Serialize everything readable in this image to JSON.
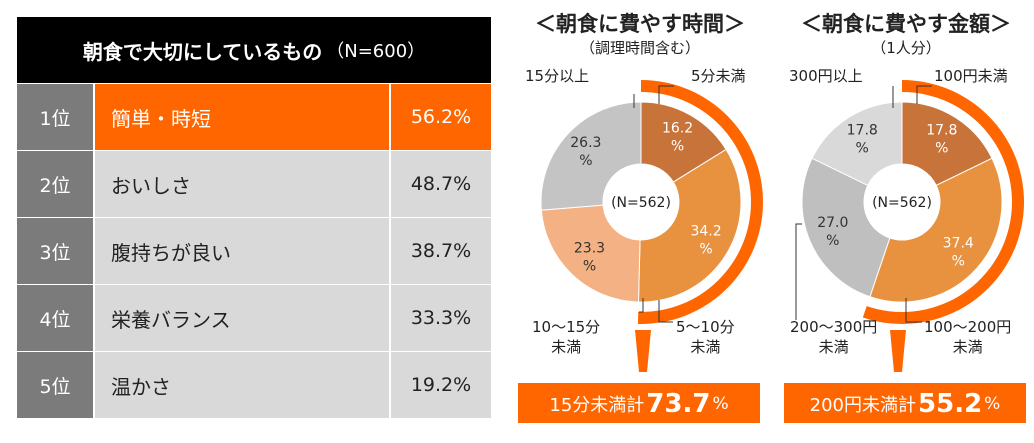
{
  "ranking": {
    "title": "朝食で大切にしているもの",
    "n_label": "（N=600）",
    "rows": [
      {
        "rank": "1位",
        "item": "簡単・時短",
        "value": "56.2%"
      },
      {
        "rank": "2位",
        "item": "おいしさ",
        "value": "48.7%"
      },
      {
        "rank": "3位",
        "item": "腹持ちが良い",
        "value": "38.7%"
      },
      {
        "rank": "4位",
        "item": "栄養バランス",
        "value": "33.3%"
      },
      {
        "rank": "5位",
        "item": "温かさ",
        "value": "19.2%"
      }
    ]
  },
  "chart_data": [
    {
      "type": "pie",
      "title": "＜朝食に費やす時間＞",
      "subtitle": "（調理時間含む）",
      "center_label": "(N=562)",
      "categories": [
        "5分未満",
        "5〜10分未満",
        "10〜15分未満",
        "15分以上"
      ],
      "values": [
        16.2,
        34.2,
        23.3,
        26.3
      ],
      "colors": [
        "#c8733a",
        "#e8913f",
        "#f4b183",
        "#c4c4c4"
      ],
      "slice_labels": [
        [
          "16.2",
          "%"
        ],
        [
          "34.2",
          "%"
        ],
        [
          "23.3",
          "%"
        ],
        [
          "26.3",
          "%"
        ]
      ],
      "outer_labels": [
        "5分未満",
        "5～10分\n未満",
        "10～15分\n未満",
        "15分以上"
      ],
      "highlight": {
        "text": "15分未満計",
        "value": "73.7",
        "unit": "%"
      }
    },
    {
      "type": "pie",
      "title": "＜朝食に費やす金額＞",
      "subtitle": "（1人分）",
      "center_label": "(N=562)",
      "categories": [
        "100円未満",
        "100〜200円未満",
        "200〜300円未満",
        "300円以上"
      ],
      "values": [
        17.8,
        37.4,
        27.0,
        17.8
      ],
      "colors": [
        "#c8733a",
        "#e8913f",
        "#bfbfbf",
        "#d9d9d9"
      ],
      "slice_labels": [
        [
          "17.8",
          "%"
        ],
        [
          "37.4",
          "%"
        ],
        [
          "27.0",
          "%"
        ],
        [
          "17.8",
          "%"
        ]
      ],
      "outer_labels": [
        "100円未満",
        "100～200円\n未満",
        "200～300円\n未満",
        "300円以上"
      ],
      "highlight": {
        "text": "200円未満計",
        "value": "55.2",
        "unit": "%"
      }
    }
  ]
}
